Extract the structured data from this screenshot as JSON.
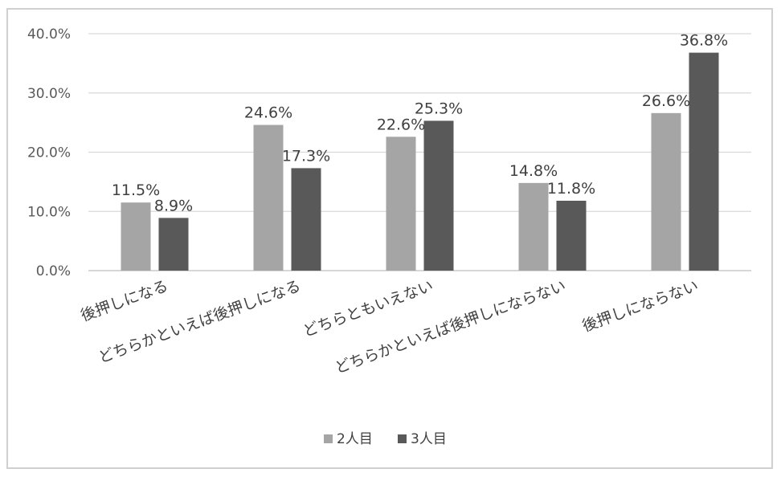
{
  "chart_data": {
    "type": "bar",
    "title": "",
    "xlabel": "",
    "ylabel": "",
    "categories": [
      "後押しになる",
      "どちらかといえば後押しになる",
      "どちらともいえない",
      "どちらかといえば後押しにならない",
      "後押しにならない"
    ],
    "series": [
      {
        "name": "2人目",
        "values": [
          11.5,
          24.6,
          22.6,
          14.8,
          26.6
        ],
        "color": "#a5a5a5"
      },
      {
        "name": "3人目",
        "values": [
          8.9,
          17.3,
          25.3,
          11.8,
          36.8
        ],
        "color": "#595959"
      }
    ],
    "ylim": [
      0,
      40
    ],
    "yticks": [
      "0.0%",
      "10.0%",
      "20.0%",
      "30.0%",
      "40.0%"
    ],
    "data_labels": [
      [
        "11.5%",
        "24.6%",
        "22.6%",
        "14.8%",
        "26.6%"
      ],
      [
        "8.9%",
        "17.3%",
        "25.3%",
        "11.8%",
        "36.8%"
      ]
    ],
    "grid": true,
    "legend": "bottom"
  }
}
